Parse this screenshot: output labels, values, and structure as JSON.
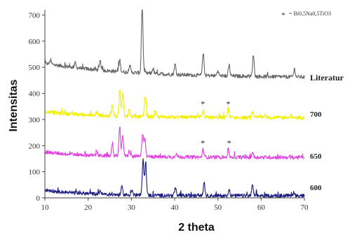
{
  "chart_data": {
    "type": "line",
    "xlabel": "2 theta",
    "ylabel": "Intensitas",
    "xlim": [
      10,
      70
    ],
    "ylim": [
      0,
      720
    ],
    "x_ticks": [
      "10",
      "20",
      "30",
      "40",
      "50",
      "60",
      "70"
    ],
    "y_ticks": [
      "0",
      "100",
      "200",
      "300",
      "400",
      "500",
      "600",
      "700"
    ],
    "legend": {
      "symbol": "*",
      "text": "= Bi0,5Na0,5TiO3",
      "position": "top-right"
    },
    "grid": false,
    "series": [
      {
        "name": "Literatur",
        "color": "#666666",
        "baseline": 460,
        "background": {
          "start": 515,
          "decay": 20
        },
        "peaks": [
          [
            11.3,
            15
          ],
          [
            17.0,
            18
          ],
          [
            22.8,
            35
          ],
          [
            27.3,
            45
          ],
          [
            29.6,
            30
          ],
          [
            32.5,
            260
          ],
          [
            35.0,
            20
          ],
          [
            40.1,
            40
          ],
          [
            46.6,
            85
          ],
          [
            50.0,
            20
          ],
          [
            52.6,
            42
          ],
          [
            58.2,
            85
          ],
          [
            67.7,
            30
          ]
        ]
      },
      {
        "name": "700",
        "color": "#f0f000",
        "baseline": 307,
        "background": {
          "start": 330,
          "decay": 12
        },
        "peaks": [
          [
            22.0,
            15
          ],
          [
            25.6,
            40
          ],
          [
            27.3,
            100
          ],
          [
            28.0,
            90
          ],
          [
            29.5,
            25
          ],
          [
            33.2,
            80
          ],
          [
            35.5,
            20
          ],
          [
            46.6,
            25
          ],
          [
            52.4,
            40
          ],
          [
            58.0,
            20
          ],
          [
            61.0,
            10
          ]
        ]
      },
      {
        "name": "650",
        "color": "#e040e0",
        "baseline": 155,
        "background": {
          "start": 175,
          "decay": 12
        },
        "peaks": [
          [
            22.0,
            15
          ],
          [
            25.6,
            40
          ],
          [
            27.3,
            115
          ],
          [
            28.0,
            80
          ],
          [
            29.5,
            20
          ],
          [
            32.6,
            90
          ],
          [
            33.1,
            70
          ],
          [
            40.3,
            15
          ],
          [
            46.6,
            30
          ],
          [
            52.4,
            30
          ],
          [
            58.0,
            20
          ]
        ]
      },
      {
        "name": "600",
        "color": "#1a1a80",
        "baseline": 8,
        "background": {
          "start": 30,
          "decay": 10
        },
        "peaks": [
          [
            22.8,
            15
          ],
          [
            27.8,
            30
          ],
          [
            30.1,
            20
          ],
          [
            32.7,
            140
          ],
          [
            33.3,
            130
          ],
          [
            40.2,
            30
          ],
          [
            46.8,
            50
          ],
          [
            52.6,
            25
          ],
          [
            58.0,
            40
          ],
          [
            67.6,
            15
          ]
        ]
      }
    ],
    "annotations": [
      {
        "symbol": "*",
        "x": 46.5,
        "y": 365
      },
      {
        "symbol": "*",
        "x": 52.4,
        "y": 365
      },
      {
        "symbol": "*",
        "x": 46.5,
        "y": 215
      },
      {
        "symbol": "*",
        "x": 52.6,
        "y": 215
      }
    ]
  }
}
